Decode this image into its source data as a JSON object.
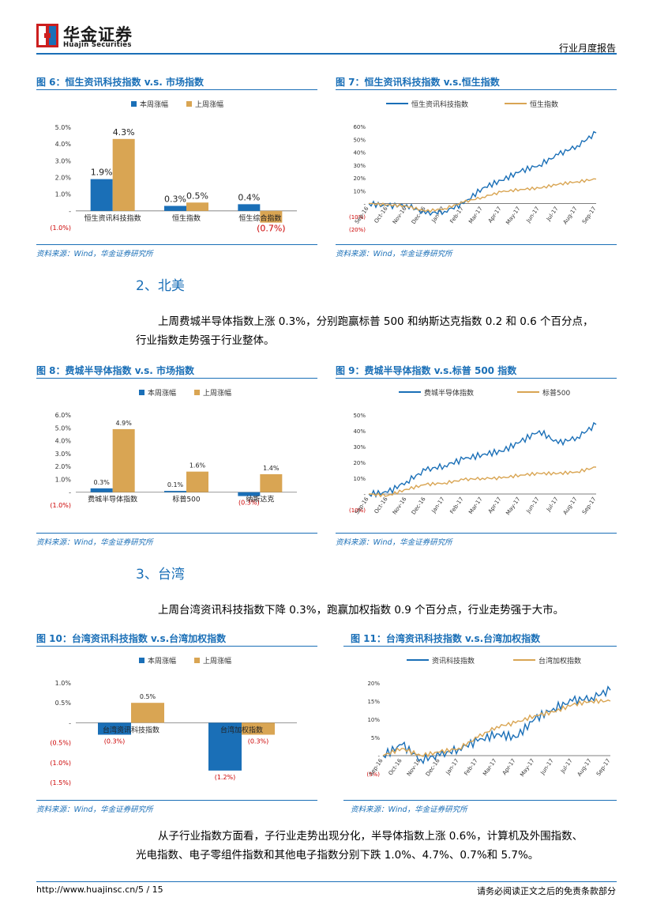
{
  "header": {
    "logo_cn": "华金证券",
    "logo_en": "Huajin Securities",
    "report_type": "行业月度报告"
  },
  "colors": {
    "accent": "#1a6fb7",
    "series_blue": "#1a6fb7",
    "series_gold": "#d9a553",
    "red": "#cc0000"
  },
  "figures": {
    "fig6": {
      "title": "图 6：恒生资讯科技指数 v.s. 市场指数"
    },
    "fig7": {
      "title": "图 7：恒生资讯科技指数 v.s.恒生指数"
    },
    "fig8": {
      "title": "图 8：费城半导体指数  v.s. 市场指数"
    },
    "fig9": {
      "title": "图 9：费城半导体指数 v.s.标普 500 指数"
    },
    "fig10": {
      "title": "图 10：台湾资讯科技指数 v.s.台湾加权指数"
    },
    "fig11": {
      "title": "图 11：台湾资讯科技指数 v.s.台湾加权指数"
    }
  },
  "source_text": "资料来源：Wind，华金证券研究所",
  "sections": {
    "na_heading": "2、北美",
    "na_para_1": "上周费城半导体指数上涨 0.3%，分别跑赢标普 500 和纳斯达克指数 0.2 和 0.6 个百分点，",
    "na_para_2": "行业指数走势强于行业整体。",
    "tw_heading": "3、台湾",
    "tw_para": "上周台湾资讯科技指数下降 0.3%，跑赢加权指数 0.9 个百分点，行业走势强于大市。",
    "sub_para_1": "从子行业指数方面看，子行业走势出现分化，半导体指数上涨 0.6%，计算机及外围指数、",
    "sub_para_2": "光电指数、电子零组件指数和其他电子指数分别下跌 1.0%、4.7%、0.7%和 5.7%。"
  },
  "footer": {
    "url": "http://www.huajinsc.cn/5 / 15",
    "disclaimer": "请务必阅读正文之后的免责条款部分"
  },
  "chart_data": [
    {
      "id": "fig6",
      "type": "bar",
      "series_names": [
        "本周涨幅",
        "上周涨幅"
      ],
      "categories": [
        "恒生资讯科技指数",
        "恒生指数",
        "恒生综合指数"
      ],
      "series": [
        {
          "name": "本周涨幅",
          "values": [
            1.9,
            0.3,
            0.4
          ],
          "labels": [
            "1.9%",
            "0.3%",
            "0.4%"
          ]
        },
        {
          "name": "上周涨幅",
          "values": [
            4.3,
            0.5,
            -0.7
          ],
          "labels": [
            "4.3%",
            "0.5%",
            "(0.7%)"
          ]
        }
      ],
      "yticks": [
        "5.0%",
        "4.0%",
        "3.0%",
        "2.0%",
        "1.0%",
        "-",
        "(1.0%)"
      ],
      "ylim": [
        -1,
        5
      ]
    },
    {
      "id": "fig7",
      "type": "line",
      "series_names": [
        "恒生资讯科技指数",
        "恒生指数"
      ],
      "x_ticks": [
        "Sep-16",
        "Oct-16",
        "Nov-16",
        "Dec-16",
        "Jan-17",
        "Feb-17",
        "Mar-17",
        "Apr-17",
        "May-17",
        "Jun-17",
        "Jul-17",
        "Aug-17",
        "Sep-17"
      ],
      "yticks": [
        "60%",
        "50%",
        "40%",
        "30%",
        "20%",
        "10%",
        "-",
        "(10%)",
        "(20%)"
      ],
      "ylim": [
        -20,
        60
      ],
      "series": [
        {
          "name": "恒生资讯科技指数",
          "values": [
            0,
            -2,
            -1,
            -8,
            -6,
            0,
            12,
            18,
            25,
            30,
            38,
            45,
            55
          ]
        },
        {
          "name": "恒生指数",
          "values": [
            0,
            -1,
            -2,
            -6,
            -4,
            1,
            5,
            9,
            11,
            12,
            15,
            17,
            19
          ]
        }
      ]
    },
    {
      "id": "fig8",
      "type": "bar",
      "series_names": [
        "本周涨幅",
        "上周涨幅"
      ],
      "categories": [
        "费城半导体指数",
        "标普500",
        "纳斯达克"
      ],
      "series": [
        {
          "name": "本周涨幅",
          "values": [
            0.3,
            0.1,
            -0.3
          ],
          "labels": [
            "0.3%",
            "0.1%",
            "(0.3%)"
          ]
        },
        {
          "name": "上周涨幅",
          "values": [
            4.9,
            1.6,
            1.4
          ],
          "labels": [
            "4.9%",
            "1.6%",
            "1.4%"
          ]
        }
      ],
      "yticks": [
        "6.0%",
        "5.0%",
        "4.0%",
        "3.0%",
        "2.0%",
        "1.0%",
        "-",
        "(1.0%)"
      ],
      "ylim": [
        -1,
        6
      ]
    },
    {
      "id": "fig9",
      "type": "line",
      "series_names": [
        "费城半导体指数",
        "标普500"
      ],
      "x_ticks": [
        "Sep-16",
        "Oct-16",
        "Nov-16",
        "Dec-16",
        "Jan-17",
        "Feb-17",
        "Mar-17",
        "Apr-17",
        "May-17",
        "Jun-17",
        "Jul-17",
        "Aug-17",
        "Sep-17"
      ],
      "yticks": [
        "50%",
        "40%",
        "30%",
        "20%",
        "10%",
        "-",
        "(10%)"
      ],
      "ylim": [
        -10,
        50
      ],
      "series": [
        {
          "name": "费城半导体指数",
          "values": [
            0,
            1,
            8,
            15,
            18,
            22,
            25,
            27,
            33,
            40,
            32,
            36,
            44
          ]
        },
        {
          "name": "标普500",
          "values": [
            0,
            -1,
            3,
            6,
            7,
            9,
            10,
            10,
            12,
            13,
            13,
            14,
            17
          ]
        }
      ]
    },
    {
      "id": "fig10",
      "type": "bar",
      "series_names": [
        "本周涨幅",
        "上周涨幅"
      ],
      "categories": [
        "台湾资讯科技指数",
        "台湾加权指数"
      ],
      "series": [
        {
          "name": "本周涨幅",
          "values": [
            -0.3,
            -1.2
          ],
          "labels": [
            "(0.3%)",
            "(1.2%)"
          ]
        },
        {
          "name": "上周涨幅",
          "values": [
            0.5,
            -0.3
          ],
          "labels": [
            "0.5%",
            "(0.3%)"
          ]
        }
      ],
      "yticks": [
        "1.0%",
        "0.5%",
        "-",
        "(0.5%)",
        "(1.0%)",
        "(1.5%)"
      ],
      "ylim": [
        -1.5,
        1
      ]
    },
    {
      "id": "fig11",
      "type": "line",
      "series_names": [
        "资讯科技指数",
        "台湾加权指数"
      ],
      "x_ticks": [
        "Sep-16",
        "Oct-16",
        "Nov-16",
        "Dec-16",
        "Jan-17",
        "Feb-17",
        "Mar-17",
        "Apr-17",
        "May-17",
        "Jun-17",
        "Jul-17",
        "Aug-17",
        "Sep-17"
      ],
      "yticks": [
        "20%",
        "15%",
        "10%",
        "5%",
        "-",
        "(5%)"
      ],
      "ylim": [
        -5,
        20
      ],
      "series": [
        {
          "name": "资讯科技指数",
          "values": [
            0,
            3,
            -1,
            0,
            2,
            4,
            6,
            5,
            10,
            13,
            15,
            16,
            18
          ]
        },
        {
          "name": "台湾加权指数",
          "values": [
            0,
            2,
            0,
            1,
            2,
            5,
            8,
            9,
            11,
            12,
            14,
            15,
            15
          ]
        }
      ]
    }
  ]
}
